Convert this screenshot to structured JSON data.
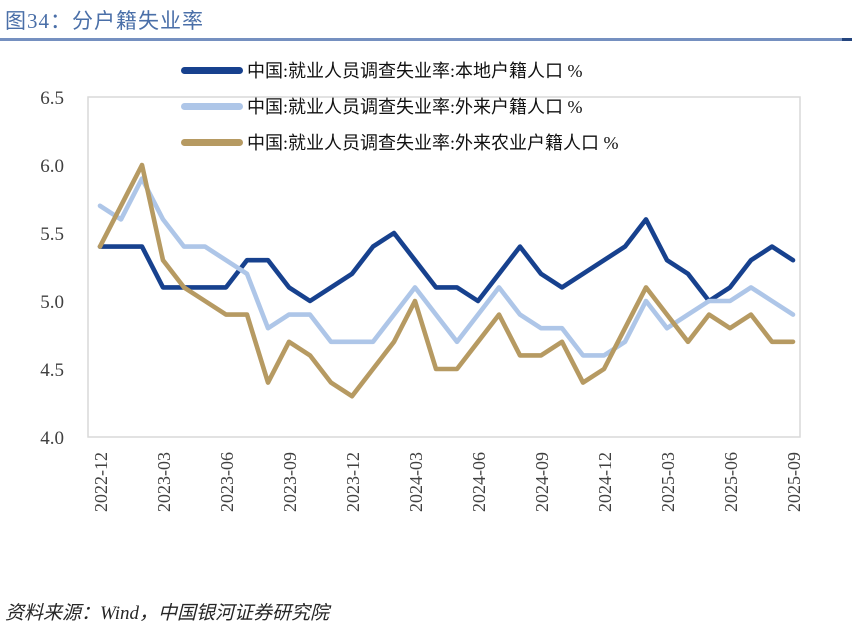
{
  "header": {
    "title": "图34：分户籍失业率"
  },
  "source": {
    "text": "资料来源：Wind，中国银河证券研究院"
  },
  "colors": {
    "title_blue": "#4a6fa8",
    "divider_blue": "#7590c0",
    "divider_cap": "#24457e",
    "axis_text": "#404040",
    "frame_gray": "#d9d9d9",
    "source_text": "#262626"
  },
  "chart_data": {
    "type": "line",
    "x": [
      "2022-12",
      "2023-01",
      "2023-02",
      "2023-03",
      "2023-04",
      "2023-05",
      "2023-06",
      "2023-07",
      "2023-08",
      "2023-09",
      "2023-10",
      "2023-11",
      "2023-12",
      "2024-01",
      "2024-02",
      "2024-03",
      "2024-04",
      "2024-05",
      "2024-06",
      "2024-07",
      "2024-08",
      "2024-09",
      "2024-10",
      "2024-11",
      "2024-12",
      "2025-01",
      "2025-02",
      "2025-03",
      "2025-04",
      "2025-05",
      "2025-06",
      "2025-07",
      "2025-08",
      "2025-09"
    ],
    "x_tick_every": 3,
    "ylim": [
      4.0,
      6.5
    ],
    "yticks": [
      "4.0",
      "4.5",
      "5.0",
      "5.5",
      "6.0",
      "6.5"
    ],
    "grid": false,
    "legend_position": "top",
    "series": [
      {
        "name": "中国:就业人员调查失业率:本地户籍人口 %",
        "color": "#17418e",
        "values": [
          5.4,
          5.4,
          5.4,
          5.1,
          5.1,
          5.1,
          5.1,
          5.3,
          5.3,
          5.1,
          5.0,
          5.1,
          5.2,
          5.4,
          5.5,
          5.3,
          5.1,
          5.1,
          5.0,
          5.2,
          5.4,
          5.2,
          5.1,
          5.2,
          5.3,
          5.4,
          5.6,
          5.3,
          5.2,
          5.0,
          5.1,
          5.3,
          5.4,
          5.3
        ]
      },
      {
        "name": "中国:就业人员调查失业率:外来户籍人口 %",
        "color": "#aec6e8",
        "values": [
          5.7,
          5.6,
          5.9,
          5.6,
          5.4,
          5.4,
          5.3,
          5.2,
          4.8,
          4.9,
          4.9,
          4.7,
          4.7,
          4.7,
          4.9,
          5.1,
          4.9,
          4.7,
          4.9,
          5.1,
          4.9,
          4.8,
          4.8,
          4.6,
          4.6,
          4.7,
          5.0,
          4.8,
          4.9,
          5.0,
          5.0,
          5.1,
          5.0,
          4.9
        ]
      },
      {
        "name": "中国:就业人员调查失业率:外来农业户籍人口 %",
        "color": "#b69a62",
        "values": [
          5.4,
          5.7,
          6.0,
          5.3,
          5.1,
          5.0,
          4.9,
          4.9,
          4.4,
          4.7,
          4.6,
          4.4,
          4.3,
          4.5,
          4.7,
          5.0,
          4.5,
          4.5,
          4.7,
          4.9,
          4.6,
          4.6,
          4.7,
          4.4,
          4.5,
          4.8,
          5.1,
          4.9,
          4.7,
          4.9,
          4.8,
          4.9,
          4.7,
          4.7
        ]
      }
    ]
  }
}
